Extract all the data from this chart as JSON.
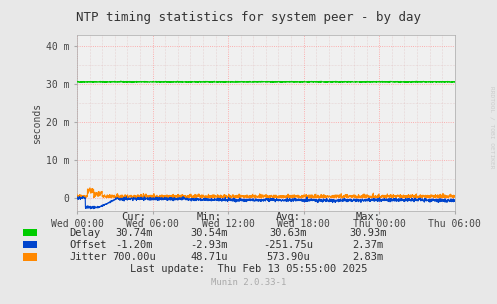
{
  "title": "NTP timing statistics for system peer - by day",
  "ylabel": "seconds",
  "background_color": "#e8e8e8",
  "plot_bg_color": "#f0f0f0",
  "grid_color": "#ff9999",
  "grid_minor_color": "#ddbbbb",
  "x_labels": [
    "Wed 00:00",
    "Wed 06:00",
    "Wed 12:00",
    "Wed 18:00",
    "Thu 00:00",
    "Thu 06:00"
  ],
  "x_ticks": [
    0,
    6,
    12,
    18,
    24,
    30
  ],
  "x_range": [
    0,
    30
  ],
  "y_ticks": [
    0,
    10000000,
    20000000,
    30000000,
    40000000
  ],
  "y_labels": [
    "0",
    "10 m",
    "20 m",
    "30 m",
    "40 m"
  ],
  "y_range": [
    -3500000,
    43000000
  ],
  "delay_color": "#00cc00",
  "offset_color": "#0044cc",
  "jitter_color": "#ff8800",
  "watermark": "RRDTOOL / TOBI OETIKER",
  "munin_version": "Munin 2.0.33-1",
  "legend_labels": [
    "Delay",
    "Offset",
    "Jitter"
  ],
  "stat_headers": [
    "Cur:",
    "Min:",
    "Avg:",
    "Max:"
  ],
  "stat_delay": [
    "30.74m",
    "30.54m",
    "30.63m",
    "30.93m"
  ],
  "stat_offset": [
    "-1.20m",
    "-2.93m",
    "-251.75u",
    "2.37m"
  ],
  "stat_jitter": [
    "700.00u",
    "48.71u",
    "573.90u",
    "2.83m"
  ],
  "last_update": "Last update:  Thu Feb 13 05:55:00 2025"
}
